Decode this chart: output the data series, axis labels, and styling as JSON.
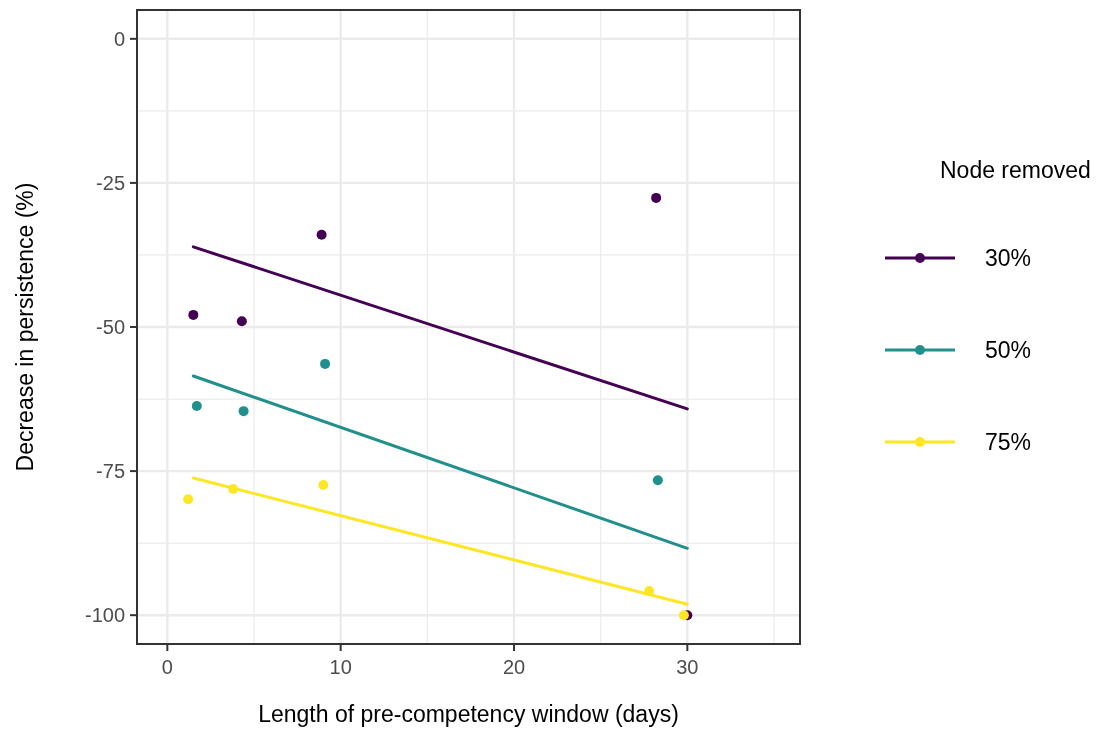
{
  "chart_data": {
    "type": "scatter",
    "xlabel": "Length of pre-competency window (days)",
    "ylabel": "Decrease in persistence (%)",
    "legend_title": "Node removed",
    "legend": "right",
    "grid": true,
    "marker": "circle",
    "xlim": [
      -1.75,
      36.5
    ],
    "ylim": [
      -105,
      5
    ],
    "xticks": [
      0,
      {
        "value": 5,
        "label": null
      },
      10,
      {
        "value": 15,
        "label": null
      },
      20,
      {
        "value": 25,
        "label": null
      },
      30,
      {
        "value": 35,
        "label": null
      }
    ],
    "yticks": [
      -100,
      {
        "value": -87.5,
        "label": null
      },
      -75,
      {
        "value": -62.5,
        "label": null
      },
      -50,
      {
        "value": -37.5,
        "label": null
      },
      -25,
      {
        "value": -12.5,
        "label": null
      },
      0
    ],
    "series": [
      {
        "type": "line",
        "marker": "none",
        "color": "#440154",
        "x": [
          1.5,
          30
        ],
        "values": [
          -36.1,
          -64.2
        ]
      },
      {
        "type": "line",
        "marker": "none",
        "color": "#21908c",
        "x": [
          1.5,
          30
        ],
        "values": [
          -58.5,
          -88.4
        ]
      },
      {
        "type": "line",
        "marker": "none",
        "color": "#fde725",
        "x": [
          1.5,
          30
        ],
        "values": [
          -76.2,
          -98.1
        ]
      },
      {
        "name": "30%",
        "color": "#440154",
        "x": [
          1.5,
          4.3,
          8.9,
          28.2,
          30
        ],
        "values": [
          -47.9,
          -49,
          -34,
          -27.6,
          -100
        ]
      },
      {
        "name": "50%",
        "color": "#21908c",
        "x": [
          1.7,
          4.4,
          9.1,
          28.3
        ],
        "values": [
          -63.7,
          -64.6,
          -56.4,
          -76.6
        ]
      },
      {
        "name": "75%",
        "color": "#fde725",
        "x": [
          1.2,
          3.8,
          9.0,
          27.8,
          29.8
        ],
        "values": [
          -79.9,
          -78.1,
          -77.4,
          -95.8,
          -100
        ]
      }
    ]
  }
}
